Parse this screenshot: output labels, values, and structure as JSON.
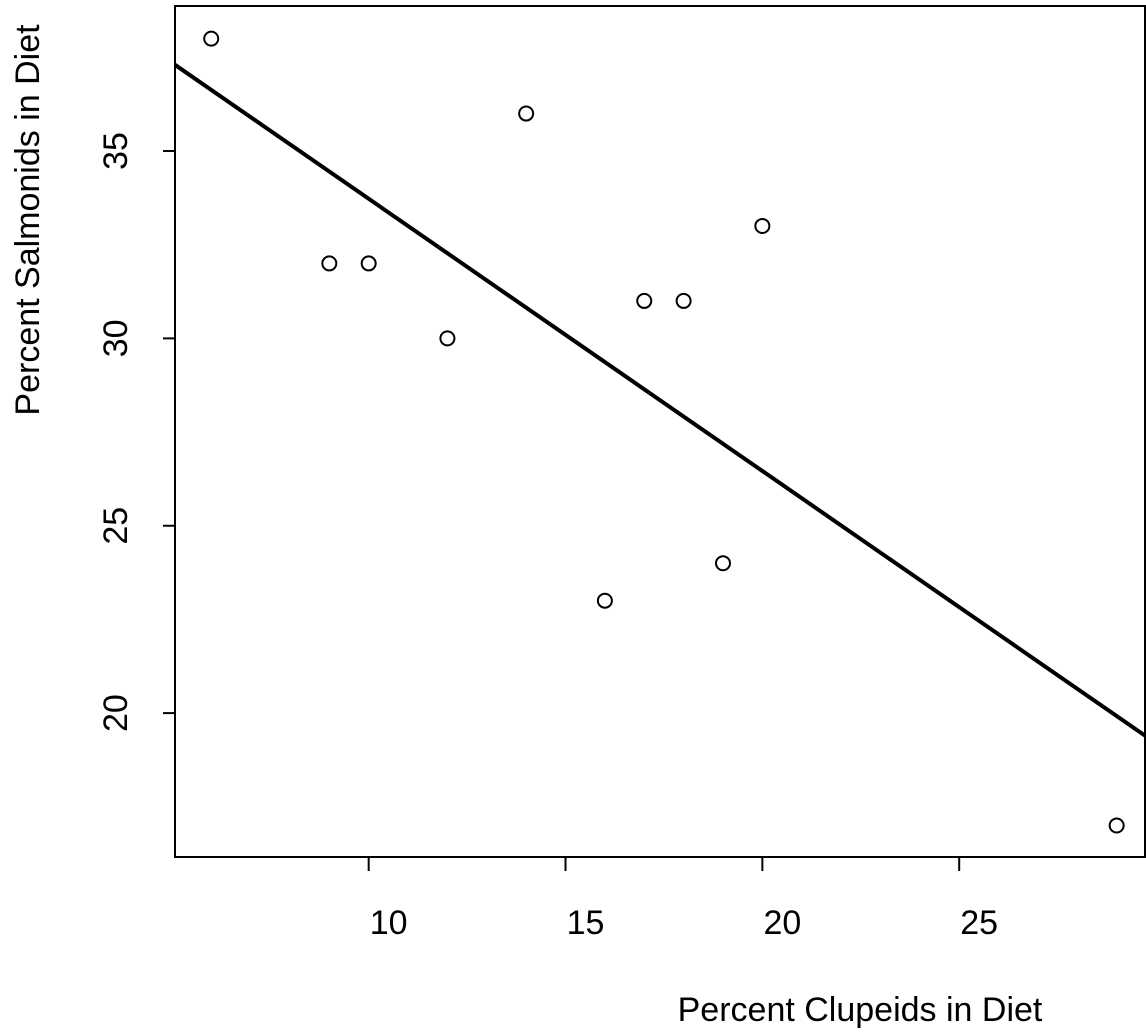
{
  "chart_data": {
    "type": "scatter",
    "x_label": "Percent Clupeids in Diet",
    "y_label": "Percent Salmonids in Diet",
    "x": [
      6,
      9,
      10,
      12,
      14,
      16,
      17,
      18,
      19,
      20,
      29
    ],
    "values": [
      38,
      32,
      32,
      30,
      36,
      23,
      31,
      31,
      24,
      33,
      17
    ],
    "color": "#000000",
    "lines": [
      {
        "x": [
          5.08,
          29.72
        ],
        "y": [
          37.3,
          19.4
        ],
        "color": "#000000"
      }
    ],
    "xlim": [
      5.08,
      29.72
    ],
    "ylim": [
      16.16,
      38.87
    ],
    "xticks": [
      10,
      15,
      20,
      25
    ],
    "yticks": [
      20,
      25,
      30,
      35
    ],
    "grid": false
  }
}
